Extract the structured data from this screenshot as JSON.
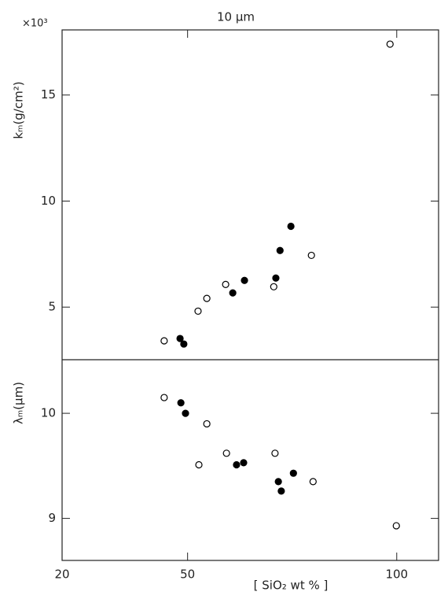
{
  "chart_data": [
    {
      "type": "scatter",
      "annotation": "10  μm",
      "y_multiplier": "×10³",
      "ylabel": "kₘ(g/cm²)",
      "xlim": [
        20,
        110
      ],
      "ylim": [
        2.52,
        18.07
      ],
      "yticks": [
        5,
        10,
        15
      ],
      "series": [
        {
          "fill": "none",
          "x": [
            44.4,
            52.5,
            54.6,
            59.1,
            70.6,
            79.6,
            98.4
          ],
          "values": [
            3.41,
            4.81,
            5.41,
            6.07,
            5.96,
            7.44,
            17.4
          ]
        },
        {
          "fill": "#000",
          "x": [
            48.2,
            49.1,
            60.8,
            63.6,
            71.1,
            72.1,
            74.7
          ],
          "values": [
            3.52,
            3.26,
            5.67,
            6.26,
            6.37,
            7.67,
            8.81
          ]
        }
      ]
    },
    {
      "type": "scatter",
      "ylabel": "λₘ(μm)",
      "xlabel": "[ SiO₂ wt % ]",
      "xlim": [
        20,
        110
      ],
      "ylim": [
        8.6,
        10.51
      ],
      "yticks": [
        9,
        10
      ],
      "xticks": [
        20,
        50,
        100
      ],
      "series": [
        {
          "fill": "none",
          "x": [
            44.4,
            54.6,
            52.7,
            59.3,
            70.9,
            80.0,
            99.9
          ],
          "values": [
            10.15,
            9.9,
            9.51,
            9.62,
            9.62,
            9.35,
            8.93
          ]
        },
        {
          "fill": "#000",
          "x": [
            48.4,
            49.5,
            61.7,
            63.4,
            71.7,
            72.4,
            75.3
          ],
          "values": [
            10.1,
            10.0,
            9.51,
            9.53,
            9.35,
            9.26,
            9.43
          ]
        }
      ]
    }
  ]
}
